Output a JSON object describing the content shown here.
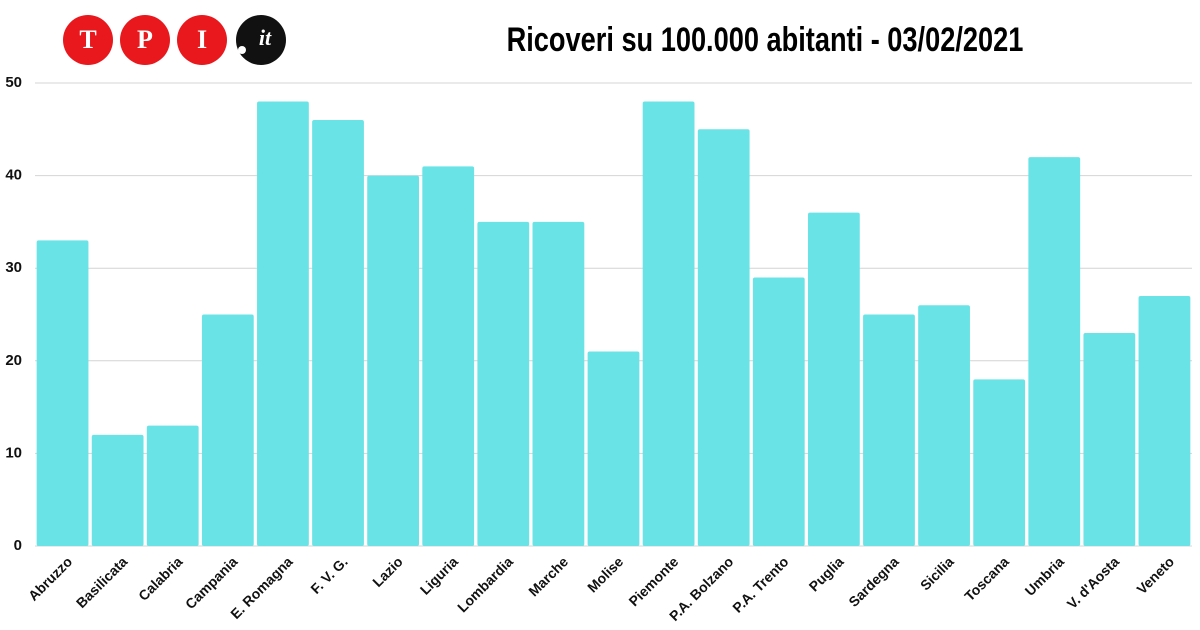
{
  "logo": {
    "letters": [
      "T",
      "P",
      "I"
    ],
    "suffix": "it"
  },
  "chart_data": {
    "type": "bar",
    "title": "Ricoveri su 100.000 abitanti - 03/02/2021",
    "categories": [
      "Abruzzo",
      "Basilicata",
      "Calabria",
      "Campania",
      "E. Romagna",
      "F. V. G.",
      "Lazio",
      "Liguria",
      "Lombardia",
      "Marche",
      "Molise",
      "Piemonte",
      "P.A. Bolzano",
      "P.A. Trento",
      "Puglia",
      "Sardegna",
      "Sicilia",
      "Toscana",
      "Umbria",
      "V. d'Aosta",
      "Veneto"
    ],
    "values": [
      33,
      12,
      13,
      25,
      48,
      46,
      40,
      41,
      35,
      35,
      21,
      48,
      45,
      29,
      36,
      25,
      26,
      18,
      42,
      23,
      27
    ],
    "color": "#6ae3e6",
    "ylim": [
      0,
      50
    ],
    "yticks": [
      0,
      10,
      20,
      30,
      40,
      50
    ],
    "grid": true
  }
}
